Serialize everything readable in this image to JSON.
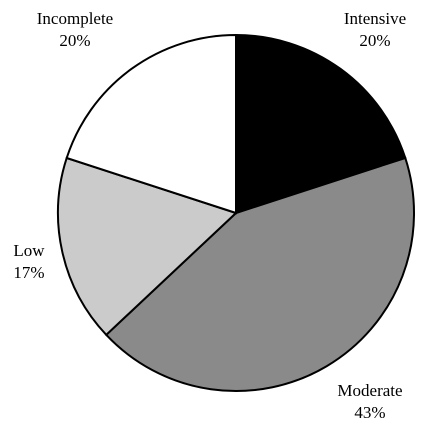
{
  "chart_data": {
    "type": "pie",
    "start_angle_deg": 0,
    "direction": "clockwise",
    "slices": [
      {
        "label": "Intensive",
        "value": 20,
        "value_label": "20%",
        "color": "#000000"
      },
      {
        "label": "Moderate",
        "value": 43,
        "value_label": "43%",
        "color": "#8a8a8a"
      },
      {
        "label": "Low",
        "value": 17,
        "value_label": "17%",
        "color": "#cbcbcb"
      },
      {
        "label": "Incomplete",
        "value": 20,
        "value_label": "20%",
        "color": "#ffffff"
      }
    ],
    "stroke_color": "#000000"
  }
}
